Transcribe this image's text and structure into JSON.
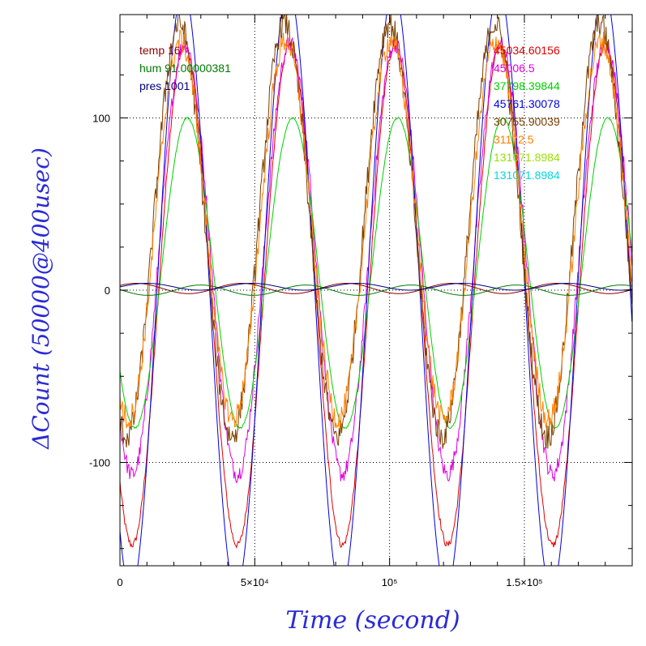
{
  "chart_data": {
    "type": "line",
    "xlabel": "Time (second)",
    "ylabel": "ΔCount (50000@400usec)",
    "xlim": [
      0,
      190000
    ],
    "ylim": [
      -160,
      160
    ],
    "x_ticks": [
      {
        "value": 0,
        "label": "0"
      },
      {
        "value": 50000,
        "label": "5×10⁴"
      },
      {
        "value": 100000,
        "label": "10⁵"
      },
      {
        "value": 150000,
        "label": "1.5×10⁵"
      }
    ],
    "y_ticks": [
      {
        "value": 100,
        "label": "100"
      },
      {
        "value": 0,
        "label": "0"
      },
      {
        "value": -100,
        "label": "-100"
      }
    ],
    "grid": true,
    "legend_left": [
      {
        "label": "temp 16",
        "color": "#8b0000"
      },
      {
        "label": "hum 91.00000381",
        "color": "#007a00"
      },
      {
        "label": "pres 1001",
        "color": "#000080"
      }
    ],
    "legend_right": [
      {
        "label": "45034.60156",
        "color": "#e00000"
      },
      {
        "label": "45006.5",
        "color": "#e000e0"
      },
      {
        "label": "37798.39844",
        "color": "#00d000"
      },
      {
        "label": "45761.30078",
        "color": "#0000e0"
      },
      {
        "label": "30755.90039",
        "color": "#7a4000"
      },
      {
        "label": "31172.5",
        "color": "#ff8000"
      },
      {
        "label": "131071.8984",
        "color": "#99e000"
      },
      {
        "label": "131071.8984",
        "color": "#00d8e0"
      }
    ],
    "period_s": 39000,
    "series": [
      {
        "color": "#e00000",
        "amplitude": 145,
        "offset": -3,
        "peak_x": 24000,
        "noise": 2
      },
      {
        "color": "#e000e0",
        "amplitude": 125,
        "offset": 18,
        "peak_x": 24000,
        "noise": 5
      },
      {
        "color": "#00d000",
        "amplitude": 90,
        "offset": 10,
        "peak_x": 25000,
        "noise": 0.5
      },
      {
        "color": "#0000e0",
        "amplitude": 175,
        "offset": 0,
        "peak_x": 23500,
        "noise": 0
      },
      {
        "color": "#7a4000",
        "amplitude": 120,
        "offset": 35,
        "peak_x": 22000,
        "noise": 8
      },
      {
        "color": "#ff8000",
        "amplitude": 110,
        "offset": 35,
        "peak_x": 22500,
        "noise": 7
      },
      {
        "color": "#8b0000",
        "amplitude": 3,
        "offset": 1,
        "peak_x": 45000,
        "noise": 0
      },
      {
        "color": "#007a00",
        "amplitude": 3,
        "offset": 0,
        "peak_x": 30000,
        "noise": 0
      },
      {
        "color": "#000080",
        "amplitude": 2,
        "offset": 2,
        "peak_x": 10000,
        "noise": 0
      }
    ]
  }
}
